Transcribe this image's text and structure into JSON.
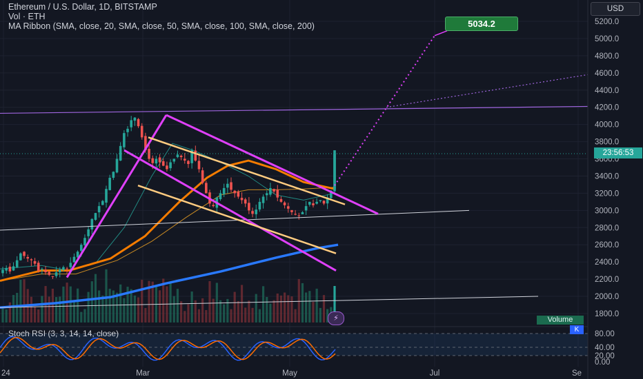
{
  "header": {
    "title": "Ethereum / U.S. Dollar, 1D, BITSTAMP",
    "volume_label": "Vol · ETH",
    "ma_label": "MA Ribbon (SMA, close, 20, SMA, close, 50, SMA, close, 100, SMA, close, 200)"
  },
  "currency_button": "USD",
  "target_label": "5034.2",
  "countdown": "23:56:53",
  "volume_tag": "Volume",
  "k_tag": "K",
  "stoch_label": "Stoch RSI (3, 3, 14, 14, close)",
  "chart_data": {
    "type": "candlestick",
    "x_axis": {
      "ticks": [
        "24",
        "Mar",
        "May",
        "Jul",
        "Se"
      ]
    },
    "price_axis": {
      "ticks": [
        "5200.0",
        "5000.0",
        "4800.0",
        "4600.0",
        "4400.0",
        "4200.0",
        "4000.0",
        "3800.0",
        "3600.0",
        "3400.0",
        "3200.0",
        "3000.0",
        "2800.0",
        "2600.0",
        "2400.0",
        "2200.0",
        "2000.0",
        "1800.0"
      ],
      "range": [
        1800,
        5300
      ]
    },
    "stoch_axis": {
      "ticks": [
        "80.00",
        "40.00",
        "20.00",
        "0.00"
      ]
    },
    "close_path": [
      2310,
      2330,
      2290,
      2350,
      2420,
      2500,
      2470,
      2440,
      2420,
      2380,
      2300,
      2320,
      2280,
      2250,
      2230,
      2280,
      2310,
      2340,
      2320,
      2390,
      2460,
      2520,
      2600,
      2680,
      2780,
      2900,
      2970,
      3050,
      3110,
      3250,
      3380,
      3450,
      3600,
      3750,
      3900,
      3950,
      4050,
      4080,
      3980,
      3850,
      3700,
      3600,
      3550,
      3600,
      3560,
      3520,
      3480,
      3560,
      3600,
      3650,
      3620,
      3580,
      3540,
      3700,
      3580,
      3480,
      3320,
      3200,
      3080,
      3050,
      3150,
      3200,
      3260,
      3310,
      3240,
      3200,
      3160,
      3120,
      3080,
      3000,
      2960,
      3010,
      3100,
      3160,
      3200,
      3260,
      3220,
      3150,
      3100,
      3060,
      3020,
      2980,
      2950,
      2940,
      2980,
      3050,
      3100,
      3060,
      3100,
      3120,
      3080,
      3150,
      3230,
      3660
    ],
    "ma_ribbon": [
      {
        "name": "SMA 20",
        "color": "#26a69a"
      },
      {
        "name": "SMA 50",
        "color": "#f5a623"
      },
      {
        "name": "SMA 100",
        "color": "#f57c00"
      },
      {
        "name": "SMA 200",
        "color": "#2979ff"
      }
    ],
    "annotations": [
      {
        "type": "trendline",
        "color": "#e040fb",
        "from": [
          "2024-02-01",
          2250
        ],
        "to": [
          "2024-03-12",
          4080
        ]
      },
      {
        "type": "resistance",
        "color": "#e040fb",
        "from": [
          "2024-03-12",
          4080
        ],
        "to": [
          "2024-06-01",
          2960
        ]
      },
      {
        "type": "channel-top",
        "color": "#ffcc80",
        "from": [
          "2024-03-02",
          3850
        ],
        "to": [
          "2024-05-28",
          3100
        ]
      },
      {
        "type": "target",
        "color": "#9c27b0",
        "value": 5034.2
      }
    ]
  }
}
